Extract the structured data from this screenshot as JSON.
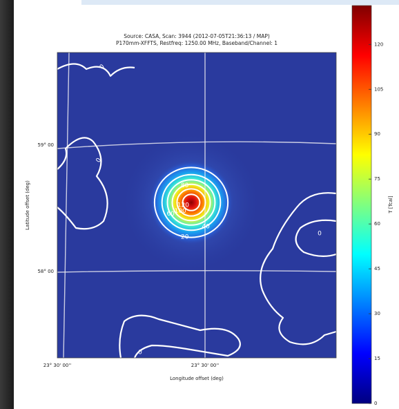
{
  "chart_data": {
    "type": "heatmap",
    "title": "Source: CASA, Scan: 3944 (2012-07-05T21:36:13 / MAP)",
    "subtitle": "P170mm-XFFTS, Restfreq: 1250.00 MHz, Baseband/Channel: 1",
    "x_label": "Longitude offset (deg)",
    "y_label": "Latitude offset (deg)",
    "x_tick_labels": [
      "23° 30' 00''",
      "23° 30' 00''"
    ],
    "y_tick_labels": [
      "59° 00",
      "58° 00"
    ],
    "colorbar_label": "T [Tcal]",
    "clim": [
      0,
      133
    ],
    "colorbar_ticks": [
      0,
      15,
      30,
      45,
      60,
      75,
      90,
      105,
      120
    ],
    "contour_levels": [
      0,
      20,
      40,
      60,
      80,
      100,
      120
    ],
    "colormap": "jet"
  }
}
